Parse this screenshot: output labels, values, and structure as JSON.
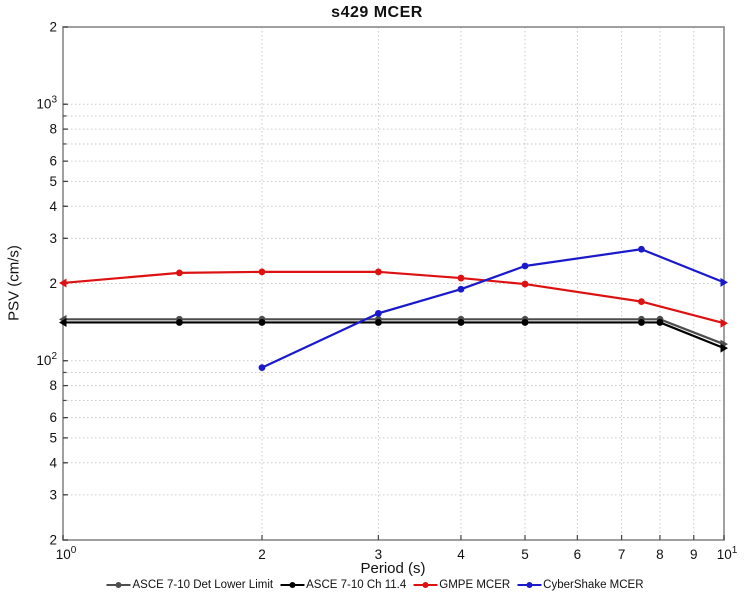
{
  "chart_data": {
    "type": "line",
    "title": "s429 MCER",
    "xlabel": "Period (s)",
    "ylabel": "PSV (cm/s)",
    "x_scale": "log",
    "y_scale": "log",
    "xlim": [
      1,
      10
    ],
    "ylim": [
      20,
      2000
    ],
    "grid": "dotted",
    "grid_color": "#c9c9c9",
    "frame_color": "#8f8f8f",
    "tick_color": "#444444",
    "legend_position": "bottom-center",
    "x_gridlines": [
      2,
      3,
      4,
      5,
      6,
      7,
      8,
      9
    ],
    "y_gridlines": [
      1000,
      900,
      800,
      700,
      600,
      500,
      400,
      300,
      200,
      100,
      90,
      80,
      70,
      60,
      50,
      40,
      30
    ],
    "x_ticks": [
      {
        "v": 1,
        "text": "10",
        "sup": "0"
      },
      {
        "v": 2,
        "text": "2"
      },
      {
        "v": 3,
        "text": "3"
      },
      {
        "v": 4,
        "text": "4"
      },
      {
        "v": 5,
        "text": "5"
      },
      {
        "v": 6,
        "text": "6"
      },
      {
        "v": 7,
        "text": "7"
      },
      {
        "v": 8,
        "text": "8"
      },
      {
        "v": 9,
        "text": "9"
      },
      {
        "v": 10,
        "text": "10",
        "sup": "1"
      }
    ],
    "y_ticks": [
      {
        "v": 2000,
        "text": "2"
      },
      {
        "v": 1000,
        "text": "10",
        "sup": "3"
      },
      {
        "v": 800,
        "text": "8"
      },
      {
        "v": 600,
        "text": "6"
      },
      {
        "v": 500,
        "text": "5"
      },
      {
        "v": 400,
        "text": "4"
      },
      {
        "v": 300,
        "text": "3"
      },
      {
        "v": 200,
        "text": "2"
      },
      {
        "v": 100,
        "text": "10",
        "sup": "2"
      },
      {
        "v": 80,
        "text": "8"
      },
      {
        "v": 60,
        "text": "6"
      },
      {
        "v": 50,
        "text": "5"
      },
      {
        "v": 40,
        "text": "4"
      },
      {
        "v": 30,
        "text": "3"
      },
      {
        "v": 20,
        "text": "2"
      }
    ],
    "series": [
      {
        "name": "ASCE 7-10 Det Lower Limit",
        "color": "#4d4d4d",
        "x": [
          1,
          1.5,
          2,
          3,
          4,
          5,
          7.5,
          8,
          10
        ],
        "y": [
          145,
          145,
          145,
          145,
          145,
          145,
          145,
          145,
          116
        ]
      },
      {
        "name": "ASCE 7-10 Ch 11.4",
        "color": "#000000",
        "x": [
          1,
          1.5,
          2,
          3,
          4,
          5,
          7.5,
          8,
          10
        ],
        "y": [
          141,
          141,
          141,
          141,
          141,
          141,
          141,
          141,
          112
        ]
      },
      {
        "name": "GMPE MCER",
        "color": "#dd1111",
        "x": [
          1,
          1.5,
          2,
          3,
          4,
          5,
          7.5,
          10
        ],
        "y": [
          201,
          220,
          222,
          222,
          210,
          199,
          170,
          140
        ]
      },
      {
        "name": "CyberShake MCER",
        "color": "#1a1acc",
        "x": [
          2,
          3,
          4,
          5,
          7.5,
          10
        ],
        "y": [
          94,
          153,
          190,
          234,
          272,
          202
        ]
      }
    ]
  }
}
